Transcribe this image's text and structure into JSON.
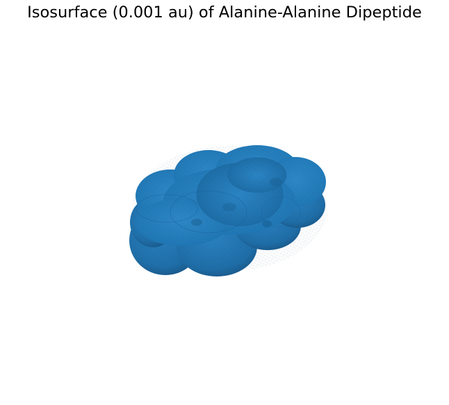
{
  "figure": {
    "title": "Isosurface (0.001 au) of Alanine-Alanine Dipeptide"
  },
  "surface": {
    "kind": "isosurface",
    "isovalue": 0.001,
    "units": "au",
    "molecule": "Alanine-Alanine Dipeptide",
    "face_color": "#1f77b4",
    "shade_dark": "#11466f",
    "shade_light": "#3f93cf",
    "edge_color": "#0d3a5e",
    "axes_visible": false,
    "grid": false
  }
}
